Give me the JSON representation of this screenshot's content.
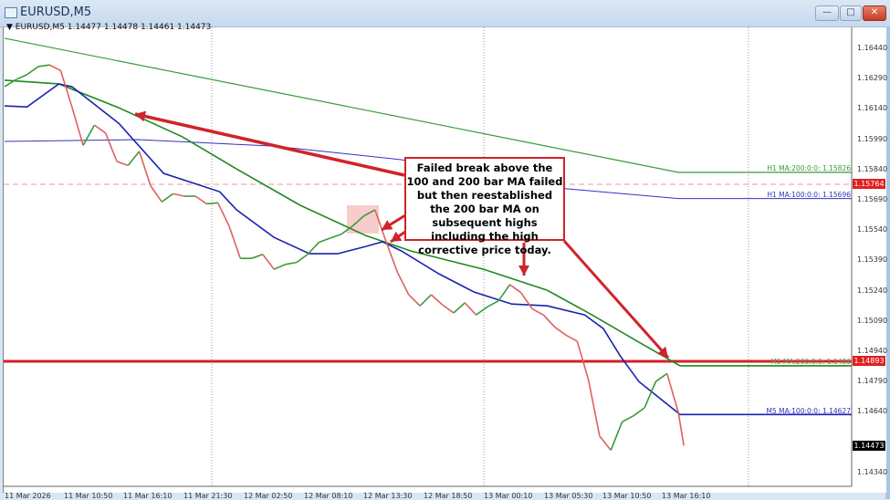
{
  "window": {
    "title": "EURUSD,M5",
    "buttons": {
      "minimize": "—",
      "maximize": "□",
      "close": "✕"
    }
  },
  "chart_header": {
    "symbol_marker": "▼",
    "symbol": "EURUSD,M5",
    "ohlc": "1.14477 1.14478 1.14461 1.14473"
  },
  "colors": {
    "up_candle": "#3a9a3a",
    "down_candle": "#e06060",
    "m5_ma200": "#1f8a1f",
    "m5_ma100": "#1a22b0",
    "h1_ma200": "#3a9a3a",
    "h1_ma100": "#3333bb",
    "annotation_red": "#d0232a",
    "current_price_bg": "#000000"
  },
  "annotation": {
    "text": "Failed break above the 100 and 200 bar MA failed but then reestablished the 200 bar MA on subsequent highs including the high corrective price today.",
    "key_level": "1.14893",
    "dashed_level": "1.15764"
  },
  "price_axis": {
    "ticks": [
      "1.16440",
      "1.16290",
      "1.16140",
      "1.15990",
      "1.15840",
      "1.15690",
      "1.15540",
      "1.15390",
      "1.15240",
      "1.15090",
      "1.14940",
      "1.14790",
      "1.14640",
      "1.14340"
    ],
    "current_price": "1.14473"
  },
  "ma_labels": {
    "h1_ma200": "H1 MA:200:0:0: 1.15826",
    "h1_ma100": "H1 MA:100:0:0: 1.15696",
    "m5_ma200": "M5 MA:200:0:0: 1.1486",
    "m5_ma100": "M5 MA:100:0:0: 1.14627"
  },
  "chart_data": {
    "type": "line",
    "ylim": [
      1.1427,
      1.167
    ],
    "grid": "vertical dotted",
    "x_ticks": [
      "11 Mar 2026",
      "11 Mar 10:50",
      "11 Mar 16:10",
      "11 Mar 21:30",
      "12 Mar 02:50",
      "12 Mar 08:10",
      "12 Mar 13:30",
      "12 Mar 18:50",
      "13 Mar 00:10",
      "13 Mar 05:30",
      "13 Mar 10:50",
      "13 Mar 16:10"
    ],
    "price": [
      [
        "11 Mar 05:30",
        1.1625
      ],
      [
        "11 Mar 06:30",
        1.16285
      ],
      [
        "11 Mar 07:30",
        1.1631
      ],
      [
        "11 Mar 08:30",
        1.1635
      ],
      [
        "11 Mar 09:30",
        1.16358
      ],
      [
        "11 Mar 10:30",
        1.1633
      ],
      [
        "11 Mar 11:30",
        1.1615
      ],
      [
        "11 Mar 12:30",
        1.1596
      ],
      [
        "11 Mar 13:30",
        1.1606
      ],
      [
        "11 Mar 14:30",
        1.1602
      ],
      [
        "11 Mar 15:30",
        1.1588
      ],
      [
        "11 Mar 16:30",
        1.1586
      ],
      [
        "11 Mar 17:30",
        1.1593
      ],
      [
        "11 Mar 18:30",
        1.1576
      ],
      [
        "11 Mar 19:30",
        1.1568
      ],
      [
        "11 Mar 20:30",
        1.1572
      ],
      [
        "11 Mar 21:30",
        1.15708
      ],
      [
        "11 Mar 22:30",
        1.15708
      ],
      [
        "11 Mar 23:30",
        1.1567
      ],
      [
        "12 Mar 00:30",
        1.15675
      ],
      [
        "12 Mar 01:30",
        1.1556
      ],
      [
        "12 Mar 02:30",
        1.154
      ],
      [
        "12 Mar 03:30",
        1.154
      ],
      [
        "12 Mar 04:30",
        1.1542
      ],
      [
        "12 Mar 05:30",
        1.15346
      ],
      [
        "12 Mar 06:30",
        1.1537
      ],
      [
        "12 Mar 07:30",
        1.1538
      ],
      [
        "12 Mar 08:30",
        1.1542
      ],
      [
        "12 Mar 09:30",
        1.1548
      ],
      [
        "12 Mar 10:30",
        1.155
      ],
      [
        "12 Mar 11:30",
        1.1552
      ],
      [
        "12 Mar 12:30",
        1.1556
      ],
      [
        "12 Mar 13:30",
        1.1561
      ],
      [
        "12 Mar 14:30",
        1.1564
      ],
      [
        "12 Mar 15:30",
        1.1548
      ],
      [
        "12 Mar 16:30",
        1.1533
      ],
      [
        "12 Mar 17:30",
        1.1522
      ],
      [
        "12 Mar 18:30",
        1.15165
      ],
      [
        "12 Mar 19:30",
        1.1522
      ],
      [
        "12 Mar 20:30",
        1.1517
      ],
      [
        "12 Mar 21:30",
        1.1513
      ],
      [
        "12 Mar 22:30",
        1.1518
      ],
      [
        "12 Mar 23:30",
        1.1512
      ],
      [
        "13 Mar 00:30",
        1.1516
      ],
      [
        "13 Mar 01:30",
        1.1519
      ],
      [
        "13 Mar 02:30",
        1.1527
      ],
      [
        "13 Mar 03:30",
        1.1523
      ],
      [
        "13 Mar 04:30",
        1.1515
      ],
      [
        "13 Mar 05:30",
        1.1512
      ],
      [
        "13 Mar 06:30",
        1.1506
      ],
      [
        "13 Mar 07:30",
        1.1502
      ],
      [
        "13 Mar 08:30",
        1.1499
      ],
      [
        "13 Mar 09:30",
        1.148
      ],
      [
        "13 Mar 10:30",
        1.1452
      ],
      [
        "13 Mar 11:30",
        1.1445
      ],
      [
        "13 Mar 12:30",
        1.1459
      ],
      [
        "13 Mar 13:30",
        1.1462
      ],
      [
        "13 Mar 14:30",
        1.1466
      ],
      [
        "13 Mar 15:30",
        1.1479
      ],
      [
        "13 Mar 16:30",
        1.1483
      ],
      [
        "13 Mar 17:30",
        1.1464
      ],
      [
        "13 Mar 18:00",
        1.14473
      ]
    ],
    "series": [
      {
        "name": "H1 MA:200",
        "points": [
          [
            "11 Mar 05:30",
            1.1649
          ],
          [
            "13 Mar 17:30",
            1.15826
          ]
        ]
      },
      {
        "name": "H1 MA:100",
        "points": [
          [
            "11 Mar 05:30",
            1.15979
          ],
          [
            "11 Mar 17:20",
            1.15988
          ],
          [
            "12 Mar 05:30",
            1.15956
          ],
          [
            "12 Mar 16:50",
            1.15889
          ],
          [
            "13 Mar 05:50",
            1.15753
          ],
          [
            "13 Mar 17:30",
            1.15696
          ]
        ]
      },
      {
        "name": "M5 MA:200",
        "points": [
          [
            "11 Mar 05:30",
            1.16282
          ],
          [
            "11 Mar 10:20",
            1.16264
          ],
          [
            "11 Mar 15:40",
            1.16146
          ],
          [
            "11 Mar 21:20",
            1.16002
          ],
          [
            "12 Mar 02:10",
            1.15843
          ],
          [
            "12 Mar 07:50",
            1.15663
          ],
          [
            "12 Mar 13:40",
            1.15513
          ],
          [
            "12 Mar 17:40",
            1.15437
          ],
          [
            "13 Mar 00:10",
            1.15346
          ],
          [
            "13 Mar 05:50",
            1.15242
          ],
          [
            "13 Mar 09:50",
            1.1512
          ],
          [
            "13 Mar 14:00",
            1.14985
          ],
          [
            "13 Mar 17:40",
            1.14868
          ]
        ]
      },
      {
        "name": "M5 MA:100",
        "points": [
          [
            "11 Mar 05:30",
            1.16155
          ],
          [
            "11 Mar 07:30",
            1.1615
          ],
          [
            "11 Mar 10:20",
            1.16264
          ],
          [
            "11 Mar 11:30",
            1.1625
          ],
          [
            "11 Mar 15:40",
            1.16069
          ],
          [
            "11 Mar 19:40",
            1.15821
          ],
          [
            "12 Mar 00:40",
            1.1573
          ],
          [
            "12 Mar 02:10",
            1.1564
          ],
          [
            "12 Mar 05:30",
            1.15504
          ],
          [
            "12 Mar 08:40",
            1.15423
          ],
          [
            "12 Mar 11:10",
            1.15423
          ],
          [
            "12 Mar 13:40",
            1.15459
          ],
          [
            "12 Mar 15:10",
            1.15482
          ],
          [
            "12 Mar 16:50",
            1.15437
          ],
          [
            "12 Mar 20:10",
            1.15324
          ],
          [
            "12 Mar 23:20",
            1.15233
          ],
          [
            "13 Mar 02:40",
            1.15174
          ],
          [
            "13 Mar 05:50",
            1.15165
          ],
          [
            "13 Mar 09:10",
            1.1512
          ],
          [
            "13 Mar 10:50",
            1.15052
          ],
          [
            "13 Mar 12:20",
            1.14917
          ],
          [
            "13 Mar 14:00",
            1.1479
          ],
          [
            "13 Mar 17:40",
            1.14627
          ]
        ]
      }
    ]
  }
}
